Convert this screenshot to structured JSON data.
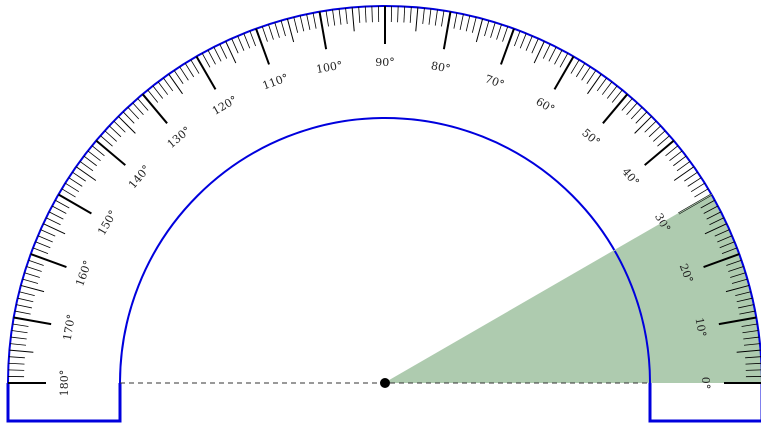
{
  "protractor": {
    "angle_degrees": 30,
    "min_degrees": 0,
    "max_degrees": 180,
    "major_step_degrees": 10,
    "minor_step_degrees": 1,
    "labels": [
      "0°",
      "10°",
      "20°",
      "30°",
      "40°",
      "50°",
      "60°",
      "70°",
      "80°",
      "90°",
      "100°",
      "110°",
      "120°",
      "130°",
      "140°",
      "150°",
      "160°",
      "170°",
      "180°"
    ],
    "colors": {
      "outline": "#0000dd",
      "sector_fill": "#aecbaf",
      "tick": "#000000",
      "baseline": "#333333",
      "center_dot": "#000000"
    }
  }
}
